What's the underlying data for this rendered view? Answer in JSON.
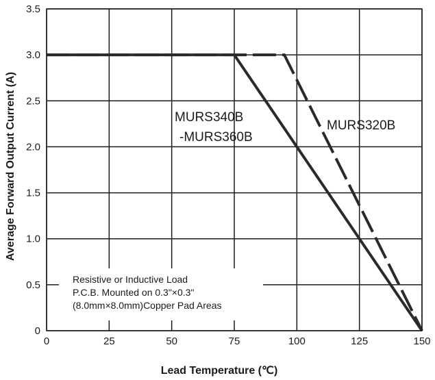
{
  "chart_data": {
    "type": "line",
    "title": "",
    "xlabel": "Lead Temperature (℃)",
    "ylabel": "Average Forward Output Current (A)",
    "xlim": [
      0,
      150
    ],
    "ylim": [
      0,
      3.5
    ],
    "x_ticks": [
      "0",
      "25",
      "50",
      "75",
      "100",
      "125",
      "150"
    ],
    "y_ticks": [
      "0",
      "0.5",
      "1.0",
      "1.5",
      "2.0",
      "2.5",
      "3.0",
      "3.5"
    ],
    "grid": true,
    "series": [
      {
        "name": "MURS340B\n-MURS360B",
        "label_lines": [
          "MURS340B",
          "-MURS360B"
        ],
        "style": "solid",
        "x": [
          0,
          75,
          150
        ],
        "y": [
          3.0,
          3.0,
          0
        ]
      },
      {
        "name": "MURS320B",
        "label_lines": [
          "MURS320B"
        ],
        "style": "dashed",
        "x": [
          0,
          95,
          150
        ],
        "y": [
          3.0,
          3.0,
          0
        ]
      }
    ],
    "annotation_lines": [
      "Resistive or Inductive Load",
      "P.C.B. Mounted on 0.3\"×0.3\"",
      "(8.0mm×8.0mm)Copper Pad Areas"
    ],
    "colors": {
      "line": "#2a2a2a",
      "grid": "#1a1a1a"
    }
  }
}
